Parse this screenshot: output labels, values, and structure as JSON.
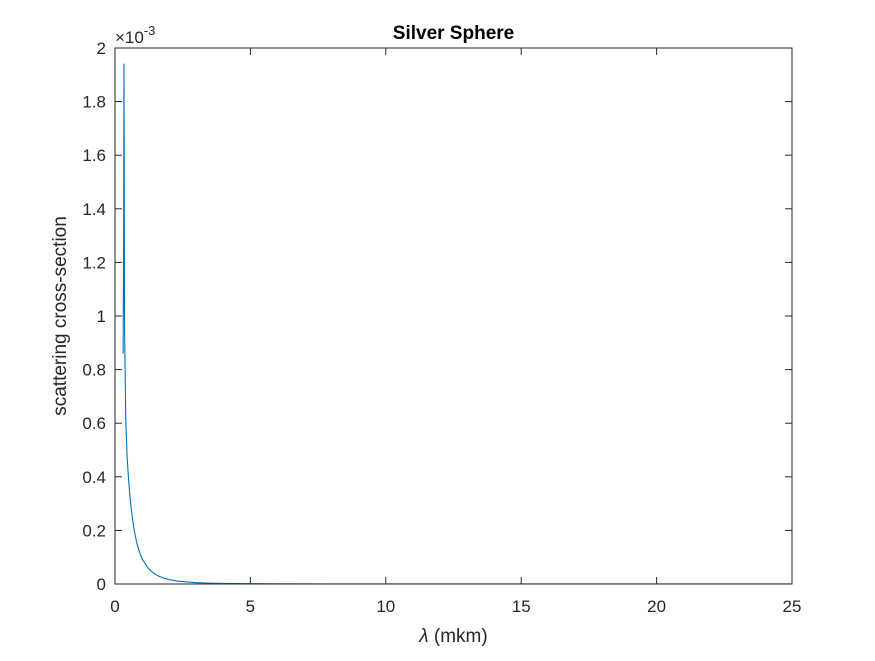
{
  "chart_data": {
    "type": "line",
    "title": "Silver Sphere",
    "xlabel_symbol": "λ",
    "xlabel_rest": " (mkm)",
    "ylabel": "scattering cross-section",
    "exponent_base": "×10",
    "exponent_power": "-3",
    "xlim": [
      0,
      25
    ],
    "ylim": [
      0,
      2
    ],
    "xticks": [
      0,
      5,
      10,
      15,
      20,
      25
    ],
    "yticks": [
      0,
      0.2,
      0.4,
      0.6,
      0.8,
      1,
      1.2,
      1.4,
      1.6,
      1.8,
      2
    ],
    "grid": false,
    "series": [
      {
        "color": "#0072BD",
        "x": [
          0.3,
          0.32,
          0.33,
          0.34,
          0.35,
          0.37,
          0.4,
          0.45,
          0.5,
          0.55,
          0.6,
          0.7,
          0.8,
          0.9,
          1.0,
          1.2,
          1.4,
          1.6,
          1.8,
          2.0,
          2.3,
          2.6,
          3.0,
          3.5,
          4.0,
          5.0,
          6.0,
          8.0,
          10.0,
          15.0,
          20.0,
          25.0
        ],
        "y": [
          0.86,
          1.35,
          1.94,
          1.6,
          1.0,
          0.82,
          0.6,
          0.47,
          0.39,
          0.33,
          0.28,
          0.205,
          0.155,
          0.12,
          0.095,
          0.062,
          0.042,
          0.03,
          0.022,
          0.016,
          0.011,
          0.008,
          0.005,
          0.003,
          0.002,
          0.0012,
          0.0008,
          0.0005,
          0.0003,
          0.0002,
          0.0001,
          0.0001
        ]
      }
    ]
  }
}
